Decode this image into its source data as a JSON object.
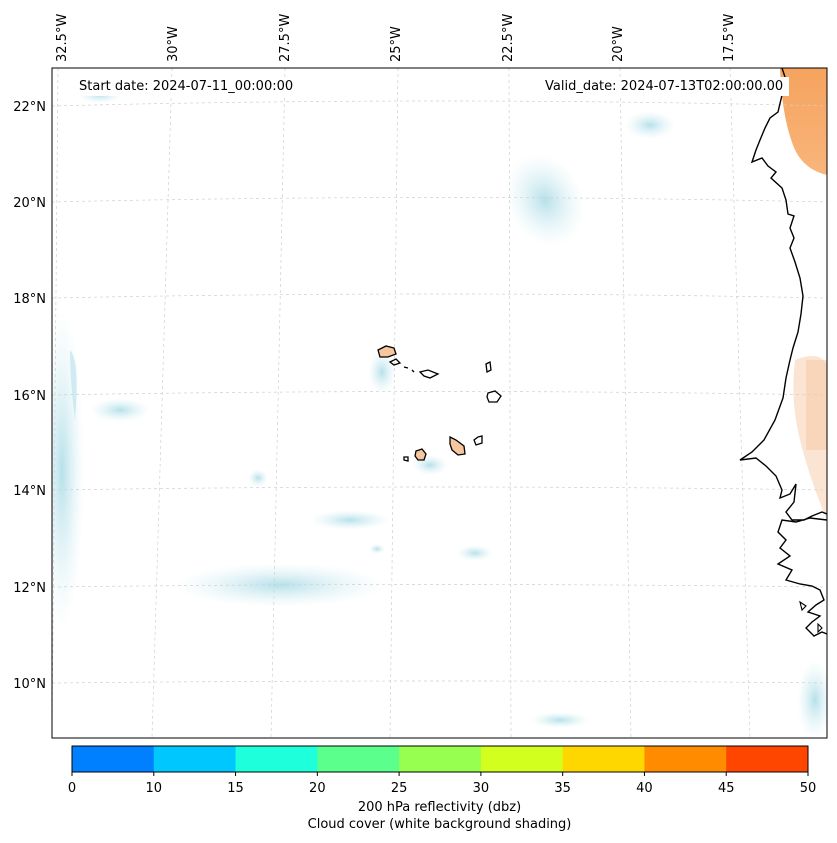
{
  "header": {
    "start_date": "Start date: 2024-07-11_00:00:00",
    "valid_date": "Valid_date: 2024-07-13T02:00:00.00"
  },
  "map": {
    "longitude_labels": [
      "32.5°W",
      "30°W",
      "27.5°W",
      "25°W",
      "22.5°W",
      "20°W",
      "17.5°W"
    ],
    "latitude_labels": [
      "22°N",
      "20°N",
      "18°N",
      "16°N",
      "14°N",
      "12°N",
      "10°N"
    ],
    "grid": true,
    "features": [
      "Cape Verde islands",
      "West African coastline"
    ]
  },
  "colorbar": {
    "ticks": [
      "0",
      "10",
      "15",
      "20",
      "25",
      "30",
      "35",
      "40",
      "45",
      "50"
    ],
    "colors": [
      "#0080ff",
      "#00c8ff",
      "#1effdc",
      "#5aff8c",
      "#96ff50",
      "#d2ff1e",
      "#ffd700",
      "#ff8c00",
      "#ff4600"
    ],
    "label_line1": "200 hPa reflectivity (dbz)",
    "label_line2": "Cloud cover (white background shading)"
  }
}
